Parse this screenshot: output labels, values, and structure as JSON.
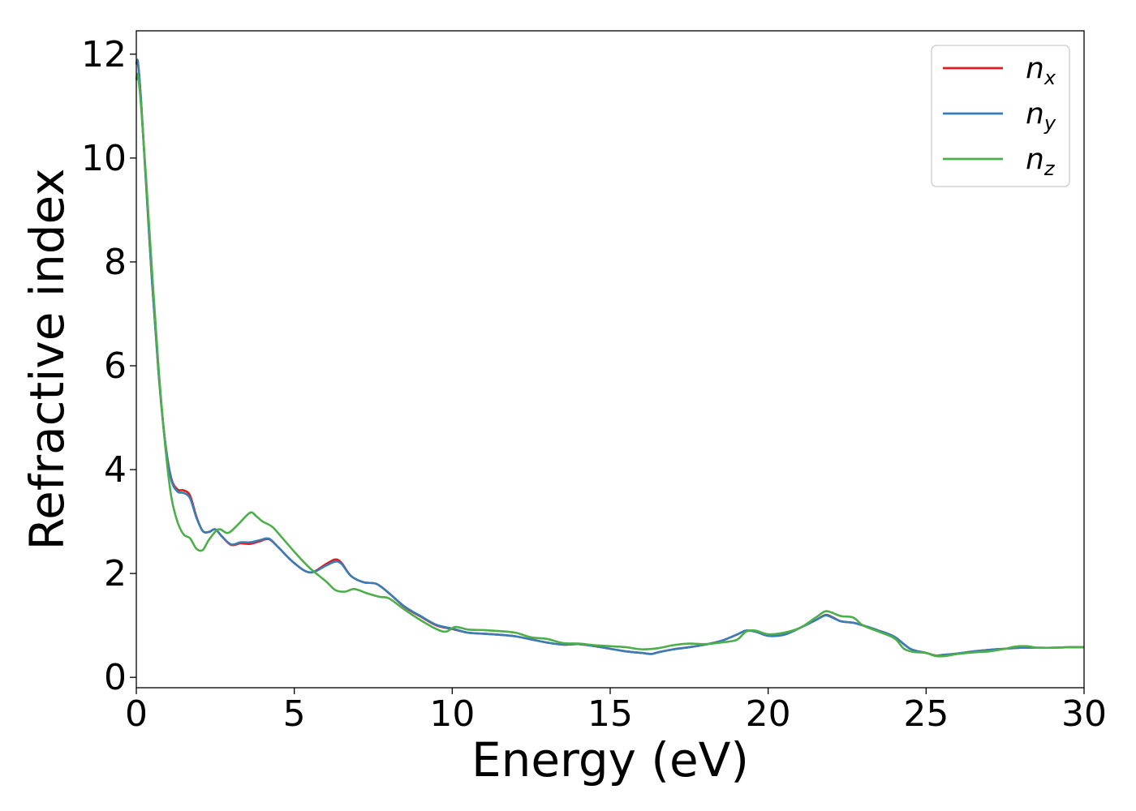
{
  "chart_data": {
    "type": "line",
    "xlabel": "Energy (eV)",
    "ylabel": "Refractive index",
    "xlim": [
      0,
      30
    ],
    "ylim": [
      -0.2,
      12.45
    ],
    "xticks": [
      0,
      5,
      10,
      15,
      20,
      25,
      30
    ],
    "yticks": [
      0,
      2,
      4,
      6,
      8,
      10,
      12
    ],
    "grid": false,
    "legend_position": "top-right",
    "series": [
      {
        "name": "n",
        "subscript": "x",
        "color": "#e41a1c",
        "x": [
          0,
          0.05,
          0.15,
          0.3,
          0.5,
          0.7,
          0.9,
          1.1,
          1.3,
          1.5,
          1.7,
          1.9,
          2.1,
          2.3,
          2.5,
          2.7,
          3.0,
          3.3,
          3.6,
          3.9,
          4.2,
          4.5,
          5.0,
          5.5,
          6.0,
          6.3,
          6.5,
          6.8,
          7.2,
          7.6,
          8.0,
          8.5,
          9.0,
          9.5,
          10.0,
          10.5,
          11.0,
          11.5,
          12.0,
          12.5,
          13.0,
          13.5,
          14.0,
          14.5,
          15.0,
          15.5,
          16.0,
          16.3,
          16.5,
          17.0,
          17.5,
          18.0,
          18.5,
          19.0,
          19.3,
          19.6,
          20.0,
          20.5,
          21.0,
          21.5,
          21.8,
          22.0,
          22.3,
          22.7,
          23.0,
          23.5,
          24.0,
          24.5,
          25.0,
          25.3,
          25.5,
          26.0,
          26.5,
          27.0,
          27.5,
          28.0,
          28.5,
          29.0,
          29.5,
          30.0
        ],
        "y": [
          11.8,
          11.85,
          11.1,
          9.6,
          7.6,
          5.9,
          4.6,
          3.85,
          3.62,
          3.6,
          3.5,
          3.1,
          2.82,
          2.8,
          2.85,
          2.72,
          2.55,
          2.58,
          2.57,
          2.62,
          2.66,
          2.5,
          2.2,
          2.02,
          2.18,
          2.27,
          2.2,
          1.95,
          1.83,
          1.8,
          1.62,
          1.35,
          1.17,
          1.0,
          0.93,
          0.86,
          0.84,
          0.82,
          0.79,
          0.73,
          0.67,
          0.63,
          0.64,
          0.6,
          0.55,
          0.5,
          0.47,
          0.45,
          0.48,
          0.54,
          0.58,
          0.63,
          0.7,
          0.82,
          0.9,
          0.88,
          0.8,
          0.82,
          0.95,
          1.1,
          1.2,
          1.17,
          1.08,
          1.05,
          1.0,
          0.9,
          0.78,
          0.55,
          0.47,
          0.42,
          0.43,
          0.46,
          0.5,
          0.53,
          0.55,
          0.57,
          0.57,
          0.57,
          0.58,
          0.58
        ]
      },
      {
        "name": "n",
        "subscript": "y",
        "color": "#377eb8",
        "x": [
          0,
          0.05,
          0.15,
          0.3,
          0.5,
          0.7,
          0.9,
          1.1,
          1.3,
          1.5,
          1.7,
          1.9,
          2.1,
          2.3,
          2.5,
          2.7,
          3.0,
          3.3,
          3.6,
          3.9,
          4.2,
          4.5,
          5.0,
          5.5,
          6.0,
          6.3,
          6.5,
          6.8,
          7.2,
          7.6,
          8.0,
          8.5,
          9.0,
          9.5,
          10.0,
          10.5,
          11.0,
          11.5,
          12.0,
          12.5,
          13.0,
          13.5,
          14.0,
          14.5,
          15.0,
          15.5,
          16.0,
          16.3,
          16.5,
          17.0,
          17.5,
          18.0,
          18.5,
          19.0,
          19.3,
          19.6,
          20.0,
          20.5,
          21.0,
          21.5,
          21.8,
          22.0,
          22.3,
          22.7,
          23.0,
          23.5,
          24.0,
          24.5,
          25.0,
          25.3,
          25.5,
          26.0,
          26.5,
          27.0,
          27.5,
          28.0,
          28.5,
          29.0,
          29.5,
          30.0
        ],
        "y": [
          11.8,
          11.85,
          11.1,
          9.6,
          7.6,
          5.9,
          4.6,
          3.82,
          3.58,
          3.55,
          3.45,
          3.08,
          2.82,
          2.8,
          2.85,
          2.72,
          2.56,
          2.6,
          2.6,
          2.64,
          2.67,
          2.5,
          2.2,
          2.02,
          2.15,
          2.23,
          2.18,
          1.95,
          1.83,
          1.8,
          1.62,
          1.36,
          1.18,
          1.01,
          0.94,
          0.86,
          0.84,
          0.82,
          0.79,
          0.73,
          0.67,
          0.63,
          0.64,
          0.6,
          0.55,
          0.5,
          0.47,
          0.45,
          0.48,
          0.54,
          0.58,
          0.63,
          0.7,
          0.82,
          0.9,
          0.88,
          0.8,
          0.82,
          0.95,
          1.1,
          1.19,
          1.16,
          1.08,
          1.05,
          1.0,
          0.9,
          0.78,
          0.55,
          0.47,
          0.42,
          0.43,
          0.46,
          0.5,
          0.53,
          0.55,
          0.57,
          0.57,
          0.57,
          0.58,
          0.58
        ]
      },
      {
        "name": "n",
        "subscript": "z",
        "color": "#4daf4a",
        "x": [
          0,
          0.05,
          0.15,
          0.3,
          0.5,
          0.7,
          0.9,
          1.1,
          1.3,
          1.5,
          1.7,
          1.9,
          2.1,
          2.3,
          2.6,
          2.9,
          3.2,
          3.6,
          3.8,
          4.0,
          4.3,
          4.6,
          5.0,
          5.5,
          6.0,
          6.3,
          6.6,
          6.9,
          7.3,
          7.7,
          8.0,
          8.5,
          9.0,
          9.5,
          9.8,
          10.1,
          10.5,
          11.0,
          11.5,
          12.0,
          12.5,
          13.0,
          13.5,
          14.0,
          14.5,
          15.0,
          15.5,
          16.0,
          16.5,
          17.0,
          17.5,
          18.0,
          18.5,
          19.0,
          19.3,
          19.6,
          20.0,
          20.5,
          21.0,
          21.5,
          21.8,
          22.0,
          22.3,
          22.7,
          23.0,
          23.5,
          24.0,
          24.3,
          24.6,
          25.0,
          25.3,
          25.6,
          26.0,
          26.5,
          27.0,
          27.5,
          27.8,
          28.2,
          28.5,
          29.0,
          29.5,
          30.0
        ],
        "y": [
          11.5,
          11.6,
          11.0,
          9.7,
          7.8,
          6.0,
          4.55,
          3.5,
          3.0,
          2.75,
          2.68,
          2.48,
          2.45,
          2.65,
          2.85,
          2.78,
          2.93,
          3.17,
          3.1,
          3.0,
          2.9,
          2.7,
          2.42,
          2.1,
          1.85,
          1.68,
          1.65,
          1.7,
          1.62,
          1.55,
          1.52,
          1.3,
          1.1,
          0.93,
          0.88,
          0.97,
          0.92,
          0.91,
          0.89,
          0.86,
          0.77,
          0.74,
          0.66,
          0.65,
          0.62,
          0.6,
          0.58,
          0.54,
          0.56,
          0.62,
          0.65,
          0.64,
          0.67,
          0.72,
          0.88,
          0.9,
          0.83,
          0.86,
          0.95,
          1.15,
          1.27,
          1.25,
          1.18,
          1.15,
          1.0,
          0.88,
          0.75,
          0.55,
          0.49,
          0.47,
          0.41,
          0.41,
          0.45,
          0.48,
          0.5,
          0.55,
          0.59,
          0.6,
          0.57,
          0.57,
          0.58,
          0.58
        ]
      }
    ]
  }
}
